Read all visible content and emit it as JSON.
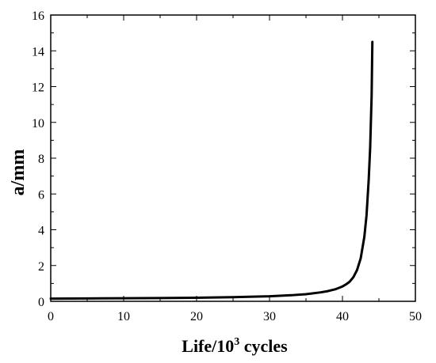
{
  "chart_data": {
    "type": "line",
    "title": "",
    "xlabel": {
      "prefix": "Life/10",
      "superscript": "3",
      "suffix": " cycles"
    },
    "ylabel": "a/mm",
    "xlim": [
      0,
      50
    ],
    "ylim": [
      0,
      16
    ],
    "xticks": [
      0,
      10,
      20,
      30,
      40,
      50
    ],
    "yticks": [
      0,
      2,
      4,
      6,
      8,
      10,
      12,
      14,
      16
    ],
    "grid": false,
    "legend": "none",
    "line_color": "#000000",
    "series": [
      {
        "x": [
          0,
          5,
          10,
          15,
          20,
          25,
          30,
          33,
          35,
          37,
          38,
          39,
          40,
          40.5,
          41,
          41.5,
          42,
          42.5,
          43,
          43.3,
          43.6,
          43.8,
          44,
          44.1
        ],
        "y": [
          0.15,
          0.16,
          0.17,
          0.18,
          0.2,
          0.23,
          0.28,
          0.34,
          0.4,
          0.5,
          0.57,
          0.67,
          0.83,
          0.95,
          1.1,
          1.35,
          1.75,
          2.4,
          3.6,
          4.8,
          6.8,
          8.6,
          11.5,
          14.5
        ]
      }
    ]
  }
}
